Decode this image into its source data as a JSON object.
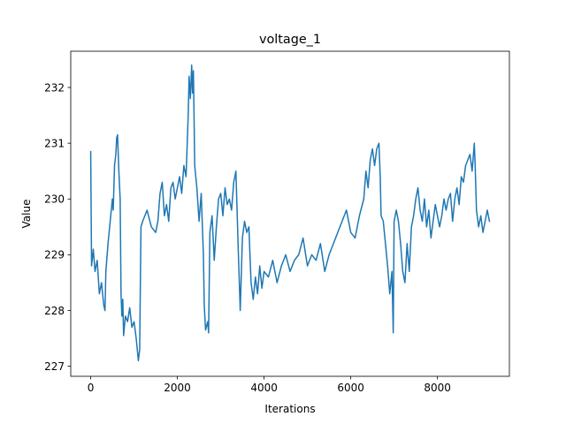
{
  "chart_data": {
    "type": "line",
    "title": "voltage_1",
    "xlabel": "Iterations",
    "ylabel": "Value",
    "xlim": [
      -460,
      9660
    ],
    "ylim": [
      226.82,
      232.65
    ],
    "x_ticks": [
      0,
      2000,
      4000,
      6000,
      8000
    ],
    "x_tick_labels": [
      "0",
      "2000",
      "4000",
      "6000",
      "8000"
    ],
    "y_ticks": [
      227,
      228,
      229,
      230,
      231,
      232
    ],
    "y_tick_labels": [
      "227",
      "228",
      "229",
      "230",
      "231",
      "232"
    ],
    "line_color": "#1f77b4",
    "series": [
      {
        "name": "voltage_1",
        "points": [
          [
            0,
            230.85
          ],
          [
            20,
            228.8
          ],
          [
            60,
            229.1
          ],
          [
            100,
            228.7
          ],
          [
            150,
            228.9
          ],
          [
            200,
            228.3
          ],
          [
            250,
            228.5
          ],
          [
            300,
            228.1
          ],
          [
            330,
            228.0
          ],
          [
            350,
            228.7
          ],
          [
            400,
            229.2
          ],
          [
            450,
            229.6
          ],
          [
            500,
            230.0
          ],
          [
            520,
            229.8
          ],
          [
            550,
            230.6
          ],
          [
            580,
            230.8
          ],
          [
            600,
            231.1
          ],
          [
            620,
            231.15
          ],
          [
            650,
            230.5
          ],
          [
            680,
            230.0
          ],
          [
            700,
            228.3
          ],
          [
            720,
            227.9
          ],
          [
            740,
            228.2
          ],
          [
            760,
            227.55
          ],
          [
            800,
            227.9
          ],
          [
            850,
            227.8
          ],
          [
            900,
            228.05
          ],
          [
            950,
            227.7
          ],
          [
            1000,
            227.8
          ],
          [
            1050,
            227.5
          ],
          [
            1100,
            227.1
          ],
          [
            1130,
            227.3
          ],
          [
            1160,
            229.5
          ],
          [
            1200,
            229.6
          ],
          [
            1300,
            229.8
          ],
          [
            1400,
            229.5
          ],
          [
            1500,
            229.4
          ],
          [
            1550,
            229.6
          ],
          [
            1600,
            230.1
          ],
          [
            1650,
            230.3
          ],
          [
            1700,
            229.7
          ],
          [
            1750,
            229.9
          ],
          [
            1800,
            229.6
          ],
          [
            1850,
            230.2
          ],
          [
            1900,
            230.3
          ],
          [
            1950,
            230.0
          ],
          [
            2000,
            230.2
          ],
          [
            2050,
            230.4
          ],
          [
            2100,
            230.1
          ],
          [
            2150,
            230.6
          ],
          [
            2200,
            230.4
          ],
          [
            2250,
            231.5
          ],
          [
            2270,
            232.2
          ],
          [
            2300,
            231.8
          ],
          [
            2330,
            232.4
          ],
          [
            2350,
            231.9
          ],
          [
            2370,
            232.3
          ],
          [
            2400,
            230.6
          ],
          [
            2450,
            230.2
          ],
          [
            2500,
            229.6
          ],
          [
            2550,
            230.1
          ],
          [
            2600,
            229.0
          ],
          [
            2620,
            228.1
          ],
          [
            2650,
            227.65
          ],
          [
            2700,
            227.8
          ],
          [
            2720,
            227.6
          ],
          [
            2750,
            229.4
          ],
          [
            2800,
            229.7
          ],
          [
            2850,
            228.9
          ],
          [
            2900,
            229.5
          ],
          [
            2950,
            230.0
          ],
          [
            3000,
            230.1
          ],
          [
            3050,
            229.7
          ],
          [
            3100,
            230.2
          ],
          [
            3150,
            229.9
          ],
          [
            3200,
            230.0
          ],
          [
            3250,
            229.8
          ],
          [
            3300,
            230.3
          ],
          [
            3350,
            230.5
          ],
          [
            3400,
            229.2
          ],
          [
            3450,
            228.0
          ],
          [
            3500,
            229.3
          ],
          [
            3550,
            229.6
          ],
          [
            3600,
            229.4
          ],
          [
            3650,
            229.5
          ],
          [
            3680,
            228.9
          ],
          [
            3700,
            228.5
          ],
          [
            3750,
            228.2
          ],
          [
            3800,
            228.6
          ],
          [
            3850,
            228.3
          ],
          [
            3900,
            228.8
          ],
          [
            3950,
            228.4
          ],
          [
            4000,
            228.7
          ],
          [
            4100,
            228.6
          ],
          [
            4200,
            228.9
          ],
          [
            4300,
            228.5
          ],
          [
            4400,
            228.8
          ],
          [
            4500,
            229.0
          ],
          [
            4600,
            228.7
          ],
          [
            4700,
            228.9
          ],
          [
            4800,
            229.0
          ],
          [
            4900,
            229.3
          ],
          [
            5000,
            228.8
          ],
          [
            5100,
            229.0
          ],
          [
            5200,
            228.9
          ],
          [
            5300,
            229.2
          ],
          [
            5400,
            228.7
          ],
          [
            5500,
            229.0
          ],
          [
            5600,
            229.2
          ],
          [
            5700,
            229.4
          ],
          [
            5800,
            229.6
          ],
          [
            5900,
            229.8
          ],
          [
            6000,
            229.4
          ],
          [
            6100,
            229.3
          ],
          [
            6200,
            229.7
          ],
          [
            6300,
            230.0
          ],
          [
            6350,
            230.5
          ],
          [
            6400,
            230.2
          ],
          [
            6450,
            230.7
          ],
          [
            6500,
            230.9
          ],
          [
            6550,
            230.6
          ],
          [
            6600,
            230.9
          ],
          [
            6650,
            231.0
          ],
          [
            6680,
            230.4
          ],
          [
            6700,
            229.7
          ],
          [
            6750,
            229.6
          ],
          [
            6800,
            229.2
          ],
          [
            6850,
            228.8
          ],
          [
            6900,
            228.3
          ],
          [
            6950,
            228.7
          ],
          [
            6980,
            227.6
          ],
          [
            7000,
            229.6
          ],
          [
            7050,
            229.8
          ],
          [
            7100,
            229.6
          ],
          [
            7150,
            229.2
          ],
          [
            7200,
            228.7
          ],
          [
            7250,
            228.5
          ],
          [
            7300,
            229.2
          ],
          [
            7350,
            228.7
          ],
          [
            7400,
            229.5
          ],
          [
            7450,
            229.7
          ],
          [
            7500,
            230.0
          ],
          [
            7550,
            230.2
          ],
          [
            7600,
            229.8
          ],
          [
            7650,
            229.6
          ],
          [
            7700,
            230.0
          ],
          [
            7750,
            229.5
          ],
          [
            7800,
            229.8
          ],
          [
            7850,
            229.3
          ],
          [
            7900,
            229.6
          ],
          [
            7950,
            229.9
          ],
          [
            8000,
            229.7
          ],
          [
            8050,
            229.5
          ],
          [
            8100,
            229.7
          ],
          [
            8150,
            230.0
          ],
          [
            8200,
            229.8
          ],
          [
            8250,
            230.0
          ],
          [
            8300,
            230.1
          ],
          [
            8350,
            229.6
          ],
          [
            8400,
            230.0
          ],
          [
            8450,
            230.2
          ],
          [
            8500,
            229.9
          ],
          [
            8550,
            230.4
          ],
          [
            8600,
            230.3
          ],
          [
            8650,
            230.6
          ],
          [
            8700,
            230.7
          ],
          [
            8750,
            230.8
          ],
          [
            8800,
            230.5
          ],
          [
            8850,
            231.0
          ],
          [
            8870,
            230.6
          ],
          [
            8900,
            229.8
          ],
          [
            8950,
            229.5
          ],
          [
            9000,
            229.7
          ],
          [
            9050,
            229.4
          ],
          [
            9100,
            229.6
          ],
          [
            9150,
            229.8
          ],
          [
            9200,
            229.6
          ]
        ]
      }
    ]
  }
}
